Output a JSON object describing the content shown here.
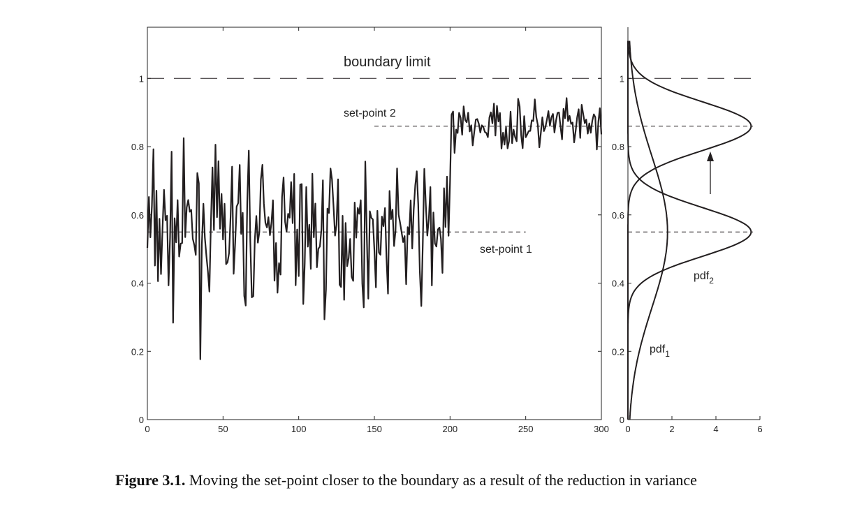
{
  "chart_data": [
    {
      "type": "line",
      "xlim": [
        0,
        300
      ],
      "ylim": [
        0,
        1.15
      ],
      "x_ticks": [
        "0",
        "50",
        "100",
        "150",
        "200",
        "250",
        "300"
      ],
      "y_ticks": [
        "0",
        "0.2",
        "0.4",
        "0.6",
        "0.8",
        "1"
      ],
      "grid": false,
      "series": [
        {
          "segments": [
            {
              "x_start": 0,
              "x_end": 200,
              "mean": 0.55,
              "band": 0.32
            },
            {
              "x_start": 200,
              "x_end": 300,
              "mean": 0.86,
              "band": 0.11
            }
          ],
          "x_points_shown": 301
        }
      ],
      "reference_lines": [
        {
          "y": 1.0,
          "x_range": [
            0,
            300
          ],
          "style": "long-dash",
          "label": "boundary limit"
        },
        {
          "y": 0.86,
          "x_range": [
            150,
            300
          ],
          "style": "dash",
          "label": "set-point 2"
        },
        {
          "y": 0.55,
          "x_range": [
            0,
            250
          ],
          "style": "dash",
          "label": "set-point 1"
        }
      ],
      "annotations": [
        "boundary limit",
        "set-point 2",
        "set-point 1"
      ]
    },
    {
      "type": "line",
      "orientation": "horizontal-density",
      "xlim": [
        0,
        6
      ],
      "ylim": [
        0,
        1.15
      ],
      "x_ticks": [
        "0",
        "2",
        "4",
        "6"
      ],
      "y_ticks": [
        "0",
        "0.2",
        "0.4",
        "0.6",
        "0.8",
        "1"
      ],
      "series": [
        {
          "name": "pdf1",
          "mean": 0.55,
          "peak": 1.8
        },
        {
          "name": "pdf2",
          "mean": 0.55,
          "peak": 5.6
        },
        {
          "name": "pdf2",
          "mean": 0.86,
          "peak": 5.6
        }
      ],
      "reference_lines": [
        {
          "y": 1.0,
          "style": "long-dash"
        },
        {
          "y": 0.86,
          "style": "dash"
        },
        {
          "y": 0.55,
          "style": "dash"
        }
      ],
      "arrow": {
        "x": 3.8,
        "y_from": 0.66,
        "y_to": 0.78
      }
    }
  ],
  "labels": {
    "boundary": "boundary limit",
    "setpoint2": "set-point 2",
    "setpoint1": "set-point 1",
    "pdf_base": "pdf",
    "pdf1_sub": "1",
    "pdf2_sub": "2"
  },
  "caption": {
    "lead": "Figure 3.1.",
    "text": " Moving the set-point closer to the boundary as a result of the reduction in variance"
  },
  "colors": {
    "ink": "#231f20",
    "axis": "#222222"
  }
}
